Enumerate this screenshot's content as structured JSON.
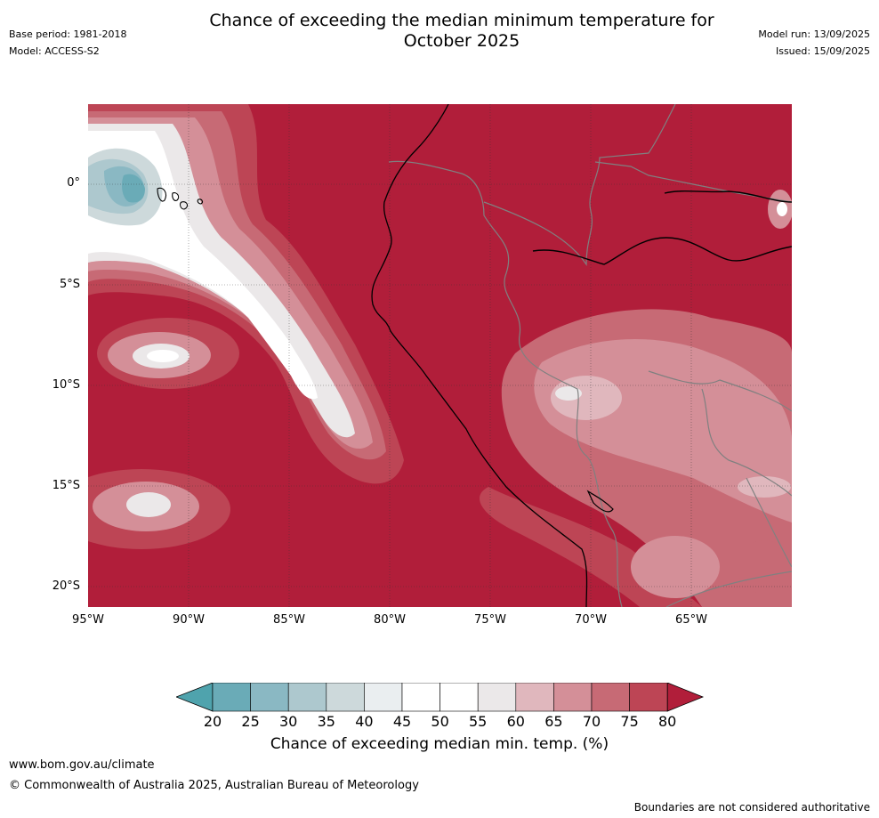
{
  "header": {
    "title_line1": "Chance of exceeding the median minimum temperature for",
    "title_line2": "October 2025",
    "base_period": "Base period: 1981-2018",
    "model": "Model: ACCESS-S2",
    "model_run": "Model run: 13/09/2025",
    "issued": "Issued: 15/09/2025"
  },
  "map": {
    "lat_labels": [
      "0°",
      "5°S",
      "10°S",
      "15°S",
      "20°S"
    ],
    "lon_labels": [
      "95°W",
      "90°W",
      "85°W",
      "80°W",
      "75°W",
      "70°W",
      "65°W"
    ],
    "background_color": "#b11e3a",
    "land_border_color": "#808080",
    "coast_color": "#000000"
  },
  "colorbar": {
    "title": "Chance of exceeding median min. temp. (%)",
    "labels": [
      "20",
      "25",
      "30",
      "35",
      "40",
      "45",
      "50",
      "55",
      "60",
      "65",
      "70",
      "75",
      "80"
    ],
    "colors": [
      "#4fa3ad",
      "#6aabb7",
      "#8ab8c3",
      "#adc8ce",
      "#cdd9db",
      "#eaeef0",
      "#ffffff",
      "#ffffff",
      "#ebe8e9",
      "#e0b7bd",
      "#d48f98",
      "#c76a75",
      "#bd4555",
      "#b11e3a"
    ]
  },
  "footer": {
    "url": "www.bom.gov.au/climate",
    "copyright": "© Commonwealth of Australia 2025, Australian Bureau of Meteorology",
    "disclaimer": "Boundaries are not considered authoritative"
  }
}
